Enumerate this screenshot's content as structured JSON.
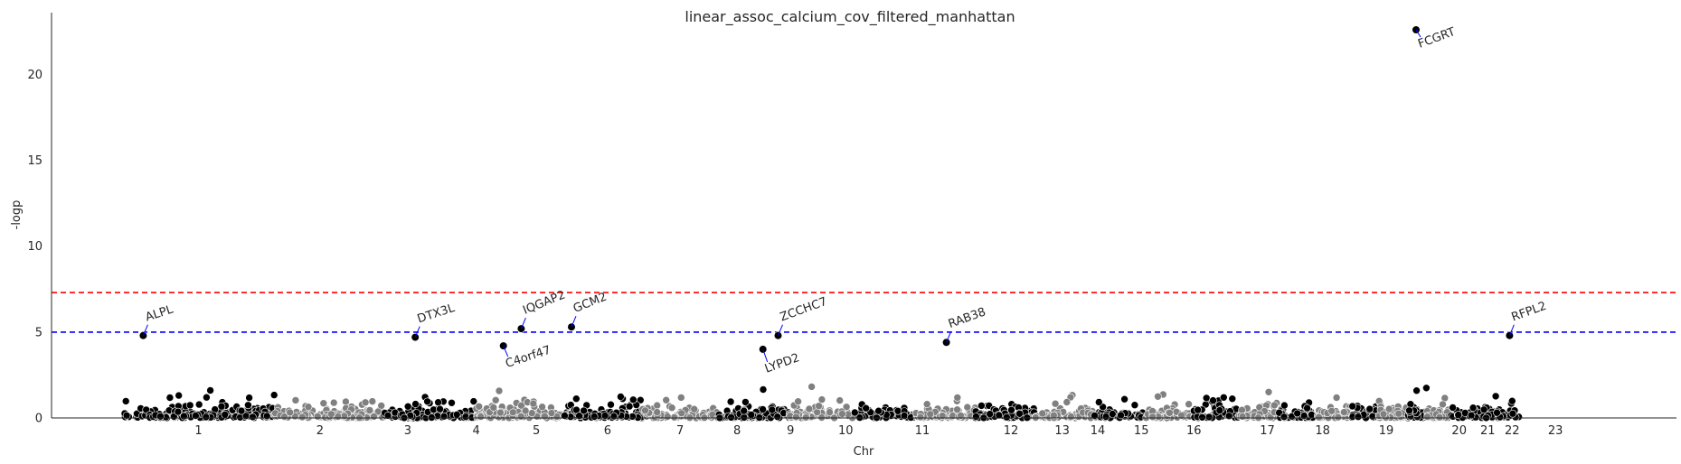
{
  "chart_data": {
    "type": "scatter",
    "title": "linear_assoc_calcium_cov_filtered_manhattan",
    "xlabel": "Chr",
    "ylabel": "-logp",
    "ylim": [
      0,
      23.6
    ],
    "yticks": [
      0,
      5,
      10,
      15,
      20
    ],
    "grid": false,
    "point_colors": [
      "#000000",
      "#808080"
    ],
    "thresholds": [
      {
        "value": 7.3,
        "color": "#ff0000"
      },
      {
        "value": 5.0,
        "color": "#0000ff"
      }
    ],
    "chromosomes": [
      {
        "label": "1",
        "start": 0,
        "end": 340
      },
      {
        "label": "2",
        "start": 340,
        "end": 587
      },
      {
        "label": "3",
        "start": 587,
        "end": 792
      },
      {
        "label": "4",
        "start": 792,
        "end": 986
      },
      {
        "label": "5",
        "start": 986,
        "end": 1167
      },
      {
        "label": "6",
        "start": 1167,
        "end": 1338
      },
      {
        "label": "7",
        "start": 1338,
        "end": 1497
      },
      {
        "label": "8",
        "start": 1497,
        "end": 1643
      },
      {
        "label": "9",
        "start": 1643,
        "end": 1781
      },
      {
        "label": "10",
        "start": 1781,
        "end": 1915
      },
      {
        "label": "11",
        "start": 1915,
        "end": 2050
      },
      {
        "label": "12",
        "start": 2050,
        "end": 2183
      },
      {
        "label": "13",
        "start": 2183,
        "end": 2298
      },
      {
        "label": "14",
        "start": 2298,
        "end": 2405
      },
      {
        "label": "15",
        "start": 2405,
        "end": 2507
      },
      {
        "label": "16",
        "start": 2507,
        "end": 2597
      },
      {
        "label": "17",
        "start": 2597,
        "end": 2680
      },
      {
        "label": "18",
        "start": 2680,
        "end": 2760
      },
      {
        "label": "19",
        "start": 2760,
        "end": 2819
      },
      {
        "label": "20",
        "start": 2819,
        "end": 2883
      },
      {
        "label": "21",
        "start": 2883,
        "end": 2930
      },
      {
        "label": "22",
        "start": 2930,
        "end": 2981
      },
      {
        "label": "23",
        "start": 2981,
        "end": 3136
      }
    ],
    "tick_positions": [
      {
        "label": "1",
        "x": 170
      },
      {
        "label": "2",
        "x": 443
      },
      {
        "label": "3",
        "x": 640
      },
      {
        "label": "4",
        "x": 794
      },
      {
        "label": "5",
        "x": 929
      },
      {
        "label": "6",
        "x": 1089
      },
      {
        "label": "7",
        "x": 1252
      },
      {
        "label": "8",
        "x": 1380
      },
      {
        "label": "9",
        "x": 1500
      },
      {
        "label": "10",
        "x": 1624
      },
      {
        "label": "11",
        "x": 1796
      },
      {
        "label": "12",
        "x": 1995
      },
      {
        "label": "13",
        "x": 2110
      },
      {
        "label": "14",
        "x": 2190
      },
      {
        "label": "15",
        "x": 2288
      },
      {
        "label": "16",
        "x": 2406
      },
      {
        "label": "17",
        "x": 2571
      },
      {
        "label": "18",
        "x": 2695
      },
      {
        "label": "19",
        "x": 2838
      },
      {
        "label": "20",
        "x": 3002
      },
      {
        "label": "21",
        "x": 3066
      },
      {
        "label": "22",
        "x": 3121
      },
      {
        "label": "23",
        "x": 3218
      }
    ],
    "xlim": [
      -160,
      3490
    ],
    "top_hits": [
      {
        "gene": "ALPL",
        "chr": "1",
        "x": 46,
        "y": 4.8
      },
      {
        "gene": "DTX3L",
        "chr": "3",
        "x": 657,
        "y": 4.7
      },
      {
        "gene": "IQGAP2",
        "chr": "5",
        "x": 895,
        "y": 5.2
      },
      {
        "gene": "C4orf47",
        "chr": "4",
        "x": 855,
        "y": 4.2
      },
      {
        "gene": "GCM2",
        "chr": "6",
        "x": 1008,
        "y": 5.3
      },
      {
        "gene": "ZCCHC7",
        "chr": "9",
        "x": 1472,
        "y": 4.8
      },
      {
        "gene": "LYPD2",
        "chr": "8",
        "x": 1438,
        "y": 4.0
      },
      {
        "gene": "RAB38",
        "chr": "11",
        "x": 1850,
        "y": 4.4
      },
      {
        "gene": "FCGRT",
        "chr": "19",
        "x": 2905,
        "y": 22.6
      },
      {
        "gene": "RFPL2",
        "chr": "22",
        "x": 3115,
        "y": 4.8
      }
    ]
  }
}
